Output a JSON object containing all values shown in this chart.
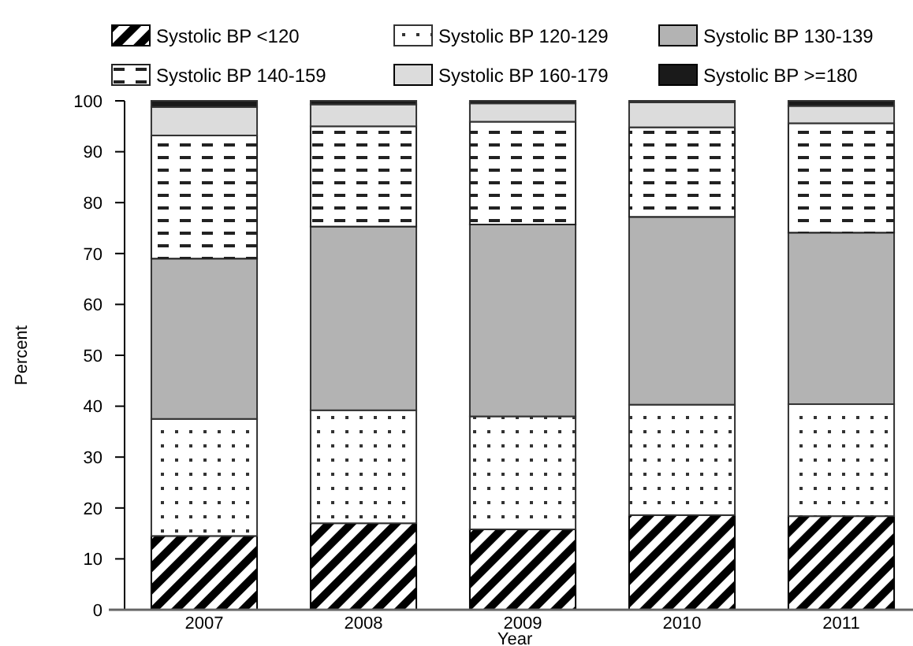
{
  "chart_data": {
    "type": "bar",
    "stacked": true,
    "xlabel": "Year",
    "ylabel": "Percent",
    "categories": [
      "2007",
      "2008",
      "2009",
      "2010",
      "2011"
    ],
    "ylim": [
      0,
      100
    ],
    "yticks": [
      0,
      10,
      20,
      30,
      40,
      50,
      60,
      70,
      80,
      90,
      100
    ],
    "legend": "top",
    "series": [
      {
        "name": "Systolic BP <120",
        "color": "#000000",
        "values": [
          14.5,
          17,
          15.8,
          18.6,
          18.4
        ]
      },
      {
        "name": "Systolic BP 120-129",
        "color": "#333333",
        "values": [
          23,
          22.2,
          22.2,
          21.7,
          22
        ]
      },
      {
        "name": "Systolic BP 130-139",
        "color": "#b3b3b3",
        "values": [
          31.5,
          36.1,
          37.7,
          36.9,
          33.7
        ]
      },
      {
        "name": "Systolic BP 140-159",
        "color": "#222222",
        "values": [
          24.2,
          19.7,
          20.2,
          17.6,
          21.5
        ]
      },
      {
        "name": "Systolic BP 160-179",
        "color": "#dcdcdc",
        "values": [
          5.6,
          4.3,
          3.6,
          4.9,
          3.4
        ]
      },
      {
        "name": "Systolic BP >=180",
        "color": "#1a1a1a",
        "values": [
          1.2,
          0.7,
          0.5,
          0.3,
          1
        ]
      }
    ]
  }
}
